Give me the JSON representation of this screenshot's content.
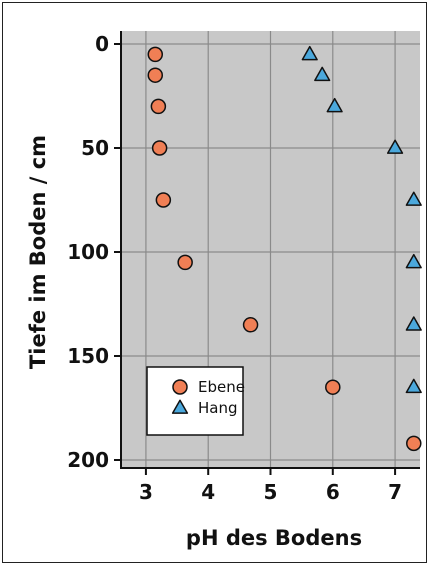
{
  "chart_data": {
    "type": "scatter",
    "title": "",
    "xlabel": "pH des Bodens",
    "ylabel": "Tiefe im Boden / cm",
    "xlim": [
      2.6,
      7.4
    ],
    "ylim": [
      0,
      205
    ],
    "y_inverted": true,
    "grid": true,
    "background_color": "#c8c8c8",
    "grid_color": "#8a8a8a",
    "legend_position": "bottom-left",
    "x_ticks": [
      "3",
      "4",
      "5",
      "6",
      "7"
    ],
    "x_tick_values": [
      3,
      4,
      5,
      6,
      7
    ],
    "y_ticks": [
      "0",
      "50",
      "100",
      "150",
      "200"
    ],
    "y_tick_values": [
      0,
      50,
      100,
      150,
      200
    ],
    "series": [
      {
        "name": "Ebene",
        "marker": "circle",
        "color": "#f07f55",
        "points": [
          {
            "x": 3.15,
            "y": 5
          },
          {
            "x": 3.15,
            "y": 15
          },
          {
            "x": 3.2,
            "y": 30
          },
          {
            "x": 3.22,
            "y": 50
          },
          {
            "x": 3.28,
            "y": 75
          },
          {
            "x": 3.63,
            "y": 105
          },
          {
            "x": 4.68,
            "y": 135
          },
          {
            "x": 6.0,
            "y": 165
          },
          {
            "x": 7.3,
            "y": 192
          }
        ]
      },
      {
        "name": "Hang",
        "marker": "triangle",
        "color": "#4ba8dc",
        "points": [
          {
            "x": 5.63,
            "y": 5
          },
          {
            "x": 5.83,
            "y": 15
          },
          {
            "x": 6.03,
            "y": 30
          },
          {
            "x": 7.0,
            "y": 50
          },
          {
            "x": 7.3,
            "y": 75
          },
          {
            "x": 7.3,
            "y": 105
          },
          {
            "x": 7.3,
            "y": 135
          },
          {
            "x": 7.3,
            "y": 165
          }
        ]
      }
    ]
  }
}
